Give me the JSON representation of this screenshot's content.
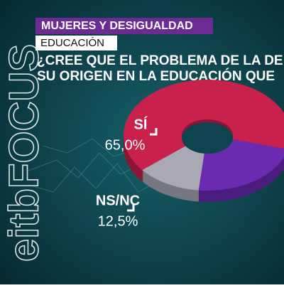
{
  "chart_data": {
    "type": "pie",
    "title": "MUJERES Y DESIGUALDAD",
    "subtitle": "EDUCACIÓN",
    "question": [
      "¿CREE QUE EL PROBLEMA DE LA DE",
      "SU ORIGEN EN LA EDUCACIÓN QUE"
    ],
    "logo": "eitbFOCUS",
    "categories": [
      "SÍ",
      null,
      "NS/NC"
    ],
    "values": [
      65.0,
      22.5,
      12.5
    ],
    "value_labels": [
      "65,0%",
      null,
      "12,5%"
    ],
    "colors": [
      "#c8214c",
      "#6a2bb0",
      "#a9a9b4"
    ],
    "side_colors": [
      "#8e1535",
      "#4a1d7e",
      "#77777f"
    ],
    "start_angle": 141
  }
}
